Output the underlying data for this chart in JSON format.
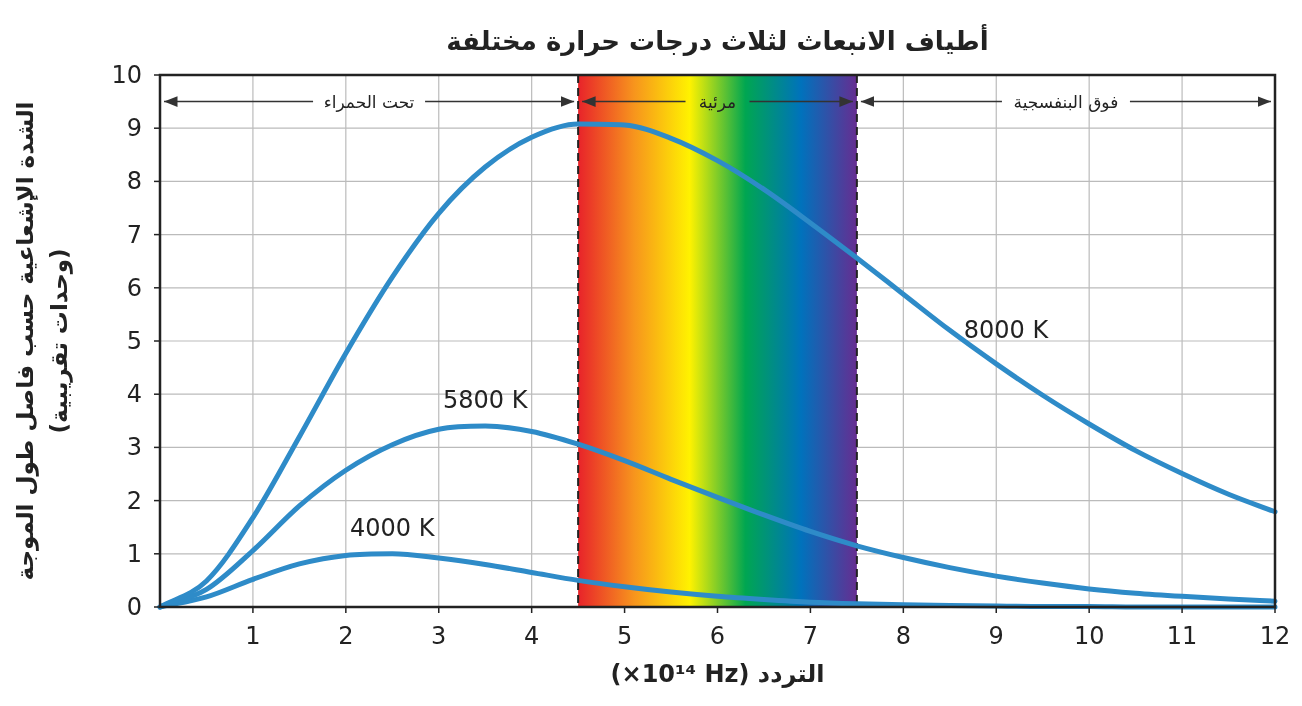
{
  "chart_data": {
    "type": "line",
    "title": "أطياف الانبعاث لثلاث درجات حرارة مختلفة",
    "xlabel": "التردد (×10¹⁴ Hz)",
    "ylabel": "الشدة الإشعاعية حسب فاصل طول الموجة (وحدات تقريبية)",
    "x": [
      0,
      0.5,
      1,
      1.5,
      2,
      2.5,
      3,
      3.5,
      4,
      4.5,
      5,
      5.5,
      6,
      6.5,
      7,
      7.5,
      8,
      8.5,
      9,
      9.5,
      10,
      10.5,
      11,
      11.5,
      12
    ],
    "series": [
      {
        "name": "4000 K",
        "color": "#2e8bc8",
        "values": [
          0,
          0.19,
          0.52,
          0.81,
          0.97,
          1.0,
          0.92,
          0.8,
          0.65,
          0.5,
          0.38,
          0.28,
          0.2,
          0.14,
          0.09,
          0.06,
          0.04,
          0.03,
          0.02,
          0.01,
          0.01,
          0,
          0,
          0,
          0
        ]
      },
      {
        "name": "5800 K",
        "color": "#2e8bc8",
        "values": [
          0,
          0.33,
          1.06,
          1.9,
          2.57,
          3.05,
          3.34,
          3.4,
          3.3,
          3.06,
          2.75,
          2.4,
          2.06,
          1.73,
          1.42,
          1.15,
          0.93,
          0.74,
          0.58,
          0.45,
          0.34,
          0.26,
          0.2,
          0.15,
          0.11
        ]
      },
      {
        "name": "8000 K",
        "color": "#2e8bc8",
        "values": [
          0,
          0.49,
          1.68,
          3.2,
          4.77,
          6.2,
          7.4,
          8.27,
          8.83,
          9.08,
          9.06,
          8.81,
          8.39,
          7.85,
          7.22,
          6.56,
          5.88,
          5.2,
          4.57,
          3.98,
          3.44,
          2.94,
          2.51,
          2.12,
          1.79
        ]
      }
    ],
    "xlim": [
      0,
      12
    ],
    "ylim": [
      0,
      10
    ],
    "xticks": [
      1,
      2,
      3,
      4,
      5,
      6,
      7,
      8,
      9,
      10,
      11,
      12
    ],
    "yticks": [
      0,
      1,
      2,
      3,
      4,
      5,
      6,
      7,
      8,
      9,
      10
    ],
    "grid": true,
    "marker": "none",
    "line_style": "solid",
    "bands": [
      {
        "axis": "x",
        "from": 4.5,
        "to": 7.5,
        "label": "مرئية",
        "color": [
          "#e8232a",
          "#f7941d",
          "#fff200",
          "#00a651",
          "#0072bc",
          "#662d91"
        ]
      }
    ],
    "ref_lines": [
      {
        "axis": "x",
        "value": 4.5,
        "color": "#222222",
        "line_style": "dashed"
      },
      {
        "axis": "x",
        "value": 7.5,
        "color": "#222222",
        "line_style": "dashed"
      }
    ],
    "annotations": [
      {
        "text": "تحت الحمراء",
        "x": 4.5,
        "y": 9.5
      },
      {
        "text": "فوق البنفسجية",
        "x": 7.5,
        "y": 9.5
      }
    ]
  }
}
